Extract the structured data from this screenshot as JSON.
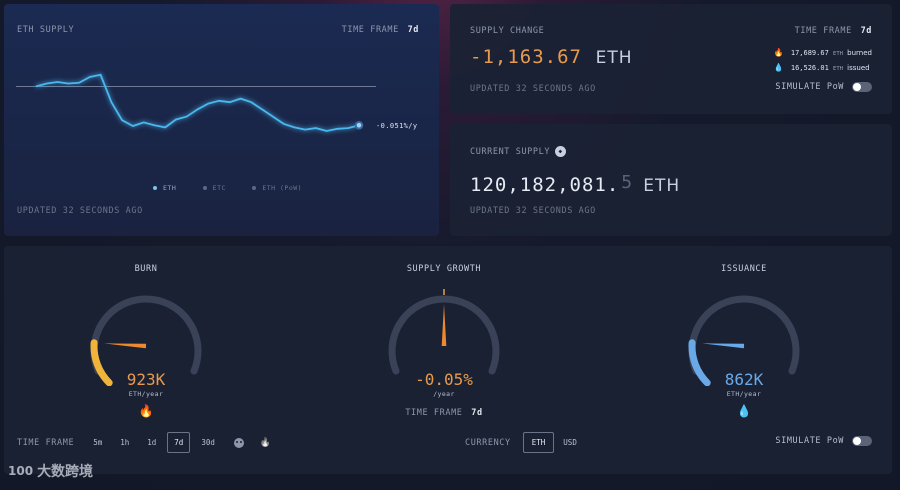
{
  "eth_supply_card": {
    "title": "ETH SUPPLY",
    "time_frame_label": "TIME FRAME",
    "time_frame_value": "7d",
    "end_label": "-0.051%/y",
    "legend": [
      {
        "label": "ETH",
        "color": "#7cc2f0"
      },
      {
        "label": "ETC",
        "color": "#5e6780"
      },
      {
        "label": "ETH (PoW)",
        "color": "#5e6780"
      }
    ],
    "updated": "UPDATED 32 SECONDS AGO"
  },
  "supply_change_card": {
    "title": "SUPPLY CHANGE",
    "time_frame_label": "TIME FRAME",
    "time_frame_value": "7d",
    "value": "-1,163.67",
    "unit": "ETH",
    "burned_amount": "17,689.67",
    "burned_unit": "ETH",
    "burned_label": "burned",
    "issued_amount": "16,526.01",
    "issued_unit": "ETH",
    "issued_label": "issued",
    "updated": "UPDATED 32 SECONDS AGO",
    "simulate_label": "SIMULATE PoW"
  },
  "current_supply_card": {
    "title": "CURRENT SUPPLY",
    "value": "120,182,081.",
    "decimals": "5",
    "unit": "ETH",
    "updated": "UPDATED 32 SECONDS AGO"
  },
  "gauges": {
    "burn": {
      "title": "BURN",
      "value": "923K",
      "unit": "ETH/year",
      "level": 0.18,
      "color": "#f0b43a"
    },
    "supply_growth": {
      "title": "SUPPLY GROWTH",
      "value": "-0.05%",
      "unit": "/year",
      "level": 0.5,
      "color": "#e89a4c"
    },
    "issuance": {
      "title": "ISSUANCE",
      "value": "862K",
      "unit": "ETH/year",
      "level": 0.18,
      "color": "#6aa9e8"
    },
    "supply_time_frame_label": "TIME FRAME",
    "supply_time_frame_value": "7d"
  },
  "bottom_bar": {
    "time_frame_label": "TIME FRAME",
    "time_frames": [
      "5m",
      "1h",
      "1d",
      "7d",
      "30d"
    ],
    "active_time_frame": "7d",
    "currency_label": "CURRENCY",
    "currencies": [
      "ETH",
      "USD"
    ],
    "active_currency": "ETH",
    "simulate_label": "SIMULATE PoW"
  },
  "watermark": {
    "text": "大数跨境"
  },
  "chart_data": {
    "type": "line",
    "title": "ETH SUPPLY",
    "xlabel": "",
    "ylabel": "",
    "grid": false,
    "legend_position": "bottom",
    "series": [
      {
        "name": "ETH",
        "values": [
          0.62,
          0.66,
          0.68,
          0.66,
          0.67,
          0.75,
          0.78,
          0.4,
          0.15,
          0.07,
          0.12,
          0.08,
          0.05,
          0.16,
          0.2,
          0.3,
          0.38,
          0.42,
          0.4,
          0.45,
          0.4,
          0.3,
          0.2,
          0.1,
          0.05,
          0.02,
          0.04,
          0.0,
          0.03,
          0.04,
          0.08
        ]
      }
    ],
    "reference_line": 0.62
  }
}
